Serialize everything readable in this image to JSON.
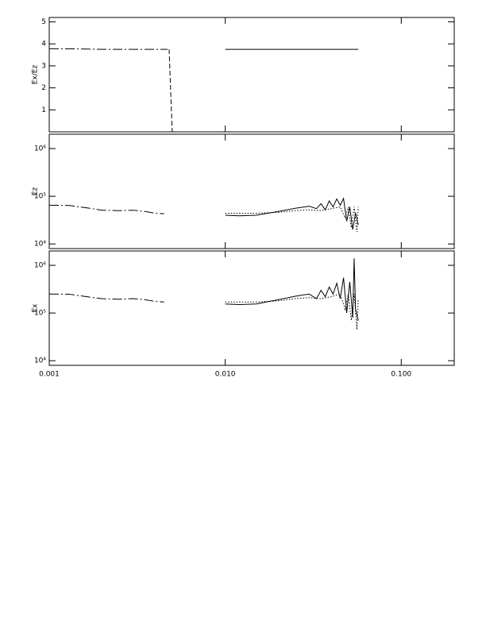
{
  "chart_data": [
    {
      "type": "line",
      "ylabel": "Ex/Ez",
      "xlog": true,
      "ylog": false,
      "xlim": [
        0.001,
        0.2
      ],
      "ylim": [
        0,
        5.2
      ],
      "yticks": [
        1,
        2,
        3,
        4,
        5
      ],
      "series": [
        {
          "color": "#000000",
          "dash": "dashdot",
          "x": [
            0.001,
            0.0015,
            0.002,
            0.003,
            0.004,
            0.0047
          ],
          "values": [
            3.78,
            3.77,
            3.75,
            3.75,
            3.75,
            3.75
          ]
        },
        {
          "color": "#000000",
          "dash": "dashed",
          "x": [
            0.0048,
            0.0049,
            0.005
          ],
          "values": [
            3.75,
            1.8,
            0
          ]
        },
        {
          "color": "#000000",
          "dash": "solid",
          "x": [
            0.01,
            0.02,
            0.03,
            0.045,
            0.057
          ],
          "values": [
            3.75,
            3.75,
            3.75,
            3.75,
            3.75
          ]
        }
      ]
    },
    {
      "type": "line",
      "ylabel": "Ez",
      "xlog": true,
      "ylog": true,
      "xlim": [
        0.001,
        0.2
      ],
      "ylim": [
        8000,
        2000000
      ],
      "yticks": [
        {
          "value": 10000,
          "label": "10⁴"
        },
        {
          "value": 100000,
          "label": "10⁵"
        },
        {
          "value": 1000000,
          "label": "10⁶"
        }
      ],
      "series": [
        {
          "color": "#000000",
          "dash": "dashdot",
          "x": [
            0.001,
            0.0013,
            0.0017,
            0.002,
            0.0025,
            0.003,
            0.0035,
            0.004,
            0.0045
          ],
          "values": [
            65000,
            64000,
            56000,
            51000,
            50000,
            51000,
            48000,
            44000,
            43000
          ]
        },
        {
          "color": "#000000",
          "dash": "solid",
          "x": [
            0.01,
            0.012,
            0.015,
            0.02,
            0.025,
            0.03,
            0.033,
            0.035,
            0.037,
            0.039,
            0.041,
            0.043,
            0.045,
            0.047,
            0.049,
            0.051,
            0.053,
            0.055,
            0.057
          ],
          "values": [
            40000,
            39000,
            40000,
            48000,
            56000,
            62000,
            55000,
            70000,
            52000,
            80000,
            60000,
            88000,
            65000,
            90000,
            30000,
            60000,
            20000,
            45000,
            25000
          ]
        },
        {
          "color": "#000000",
          "dash": "dotted",
          "x": [
            0.01,
            0.015,
            0.02,
            0.025,
            0.03,
            0.035,
            0.04,
            0.045,
            0.048,
            0.05,
            0.052,
            0.054,
            0.056,
            0.057
          ],
          "values": [
            44000,
            44000,
            46000,
            50000,
            52000,
            50000,
            55000,
            60000,
            35000,
            60000,
            22000,
            60000,
            18000,
            60000
          ]
        }
      ]
    },
    {
      "type": "line",
      "ylabel": "Ex",
      "xlog": true,
      "ylog": true,
      "xlim": [
        0.001,
        0.2
      ],
      "ylim": [
        8000,
        2000000
      ],
      "yticks": [
        {
          "value": 10000,
          "label": "10⁴"
        },
        {
          "value": 100000,
          "label": "10⁵"
        },
        {
          "value": 1000000,
          "label": "10⁶"
        }
      ],
      "xticks": [
        {
          "value": 0.001,
          "label": "0.001"
        },
        {
          "value": 0.01,
          "label": "0.010"
        },
        {
          "value": 0.1,
          "label": "0.100"
        }
      ],
      "series": [
        {
          "color": "#000000",
          "dash": "dashdot",
          "x": [
            0.001,
            0.0013,
            0.0017,
            0.002,
            0.0025,
            0.003,
            0.0035,
            0.004,
            0.0045
          ],
          "values": [
            250000,
            248000,
            215000,
            200000,
            195000,
            200000,
            190000,
            175000,
            170000
          ]
        },
        {
          "color": "#000000",
          "dash": "solid",
          "x": [
            0.01,
            0.012,
            0.015,
            0.02,
            0.025,
            0.03,
            0.033,
            0.035,
            0.037,
            0.039,
            0.041,
            0.043,
            0.045,
            0.047,
            0.049,
            0.051,
            0.053,
            0.054,
            0.055,
            0.057
          ],
          "values": [
            155000,
            150000,
            155000,
            190000,
            225000,
            250000,
            200000,
            300000,
            220000,
            350000,
            250000,
            420000,
            200000,
            550000,
            100000,
            450000,
            80000,
            1400000,
            120000,
            70000
          ]
        },
        {
          "color": "#000000",
          "dash": "dotted",
          "x": [
            0.01,
            0.015,
            0.02,
            0.025,
            0.03,
            0.035,
            0.04,
            0.045,
            0.048,
            0.05,
            0.052,
            0.054,
            0.056,
            0.057
          ],
          "values": [
            170000,
            170000,
            180000,
            200000,
            210000,
            200000,
            220000,
            250000,
            120000,
            250000,
            70000,
            250000,
            45000,
            200000
          ]
        }
      ]
    }
  ]
}
